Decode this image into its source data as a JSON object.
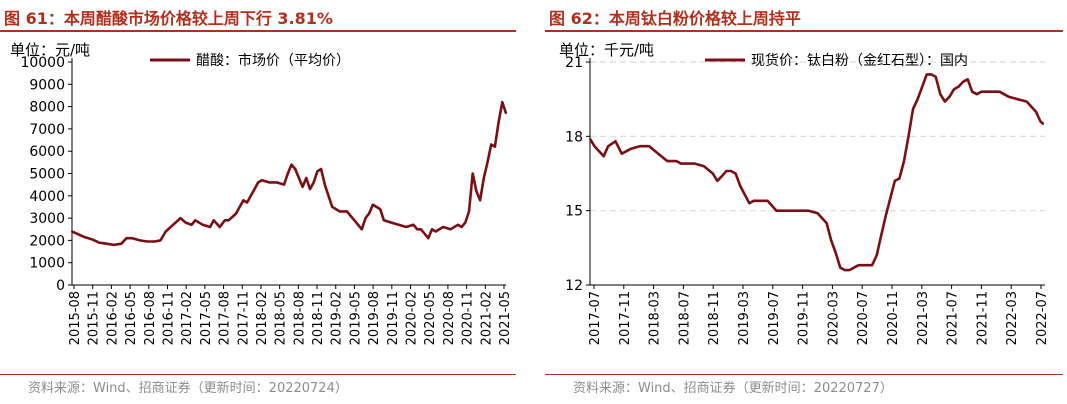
{
  "charts": [
    {
      "title": "图 61：本周醋酸市场价格较上周下行 3.81%",
      "unit": "单位：元/吨",
      "source": "资料来源：Wind、招商证券（更新时间：20220724）"
    },
    {
      "title": "图 62：本周钛白粉价格较上周持平",
      "unit": "单位：千元/吨",
      "source": "资料来源：Wind、招商证券（更新时间：20220727）"
    }
  ],
  "colors": {
    "line": "#7a0f14",
    "accent": "#b0301f",
    "grid": "#d9d9d9"
  },
  "chart_data": [
    {
      "type": "line",
      "ylim": [
        0,
        10000
      ],
      "yticks": [
        "0",
        "1000",
        "2000",
        "3000",
        "4000",
        "5000",
        "6000",
        "7000",
        "8000",
        "9000",
        "10000"
      ],
      "xlabels": [
        "2015-08",
        "2015-11",
        "2016-02",
        "2016-05",
        "2016-08",
        "2016-11",
        "2017-02",
        "2017-05",
        "2017-08",
        "2017-11",
        "2018-02",
        "2018-05",
        "2018-08",
        "2018-11",
        "2019-02",
        "2019-05",
        "2019-08",
        "2019-11",
        "2020-02",
        "2020-05",
        "2020-08",
        "2020-11",
        "2021-02",
        "2021-05"
      ],
      "xlim": [
        2015.583,
        2021.45
      ],
      "grid": false,
      "legend_position": "top",
      "series": [
        {
          "name": "醋酸：市场价（平均价）",
          "x": [
            2015.58,
            2015.65,
            2015.75,
            2015.85,
            2015.95,
            2016.05,
            2016.15,
            2016.25,
            2016.32,
            2016.4,
            2016.5,
            2016.6,
            2016.7,
            2016.78,
            2016.85,
            2016.95,
            2017.05,
            2017.12,
            2017.2,
            2017.25,
            2017.35,
            2017.45,
            2017.5,
            2017.58,
            2017.65,
            2017.7,
            2017.8,
            2017.85,
            2017.9,
            2017.95,
            2018.0,
            2018.05,
            2018.1,
            2018.15,
            2018.25,
            2018.35,
            2018.45,
            2018.5,
            2018.55,
            2018.6,
            2018.65,
            2018.7,
            2018.75,
            2018.8,
            2018.85,
            2018.9,
            2018.95,
            2019.0,
            2019.05,
            2019.1,
            2019.2,
            2019.3,
            2019.35,
            2019.4,
            2019.45,
            2019.5,
            2019.55,
            2019.6,
            2019.65,
            2019.7,
            2019.75,
            2019.8,
            2019.9,
            2020.0,
            2020.1,
            2020.2,
            2020.25,
            2020.3,
            2020.35,
            2020.4,
            2020.45,
            2020.5,
            2020.6,
            2020.7,
            2020.8,
            2020.85,
            2020.9,
            2020.95,
            2021.0,
            2021.05,
            2021.1,
            2021.15,
            2021.2,
            2021.25,
            2021.3,
            2021.35,
            2021.4,
            2021.43,
            2021.45
          ],
          "y": [
            2400,
            2300,
            2150,
            2050,
            1900,
            1850,
            1800,
            1850,
            2100,
            2100,
            2000,
            1950,
            1950,
            2000,
            2400,
            2700,
            3000,
            2800,
            2700,
            2900,
            2700,
            2600,
            2900,
            2600,
            2900,
            2900,
            3200,
            3500,
            3800,
            3700,
            4000,
            4300,
            4600,
            4700,
            4600,
            4600,
            4500,
            5000,
            5400,
            5200,
            4800,
            4400,
            4800,
            4300,
            4600,
            5100,
            5200,
            4500,
            4000,
            3500,
            3300,
            3300,
            3100,
            2900,
            2700,
            2500,
            3000,
            3200,
            3600,
            3500,
            3400,
            2900,
            2800,
            2700,
            2600,
            2700,
            2500,
            2500,
            2300,
            2100,
            2500,
            2400,
            2600,
            2500,
            2700,
            2600,
            2800,
            3300,
            5000,
            4200,
            3800,
            4800,
            5500,
            6300,
            6200,
            7300,
            8200,
            7900,
            7700
          ]
        }
      ]
    },
    {
      "type": "line",
      "ylim": [
        12,
        21
      ],
      "yticks": [
        "12",
        "15",
        "18",
        "21"
      ],
      "xlabels": [
        "2017-07",
        "2017-11",
        "2018-03",
        "2018-07",
        "2018-11",
        "2019-03",
        "2019-07",
        "2019-11",
        "2020-03",
        "2020-07",
        "2020-11",
        "2021-03",
        "2021-07",
        "2021-11",
        "2022-03",
        "2022-07"
      ],
      "xlim": [
        2017.5,
        2022.5
      ],
      "grid": true,
      "legend_position": "top",
      "series": [
        {
          "name": "现货价：钛白粉（金红石型）：国内",
          "x": [
            2017.5,
            2017.55,
            2017.6,
            2017.65,
            2017.7,
            2017.78,
            2017.85,
            2017.95,
            2018.05,
            2018.15,
            2018.25,
            2018.35,
            2018.45,
            2018.5,
            2018.55,
            2018.65,
            2018.75,
            2018.85,
            2018.9,
            2018.95,
            2019.0,
            2019.05,
            2019.1,
            2019.15,
            2019.25,
            2019.3,
            2019.35,
            2019.45,
            2019.55,
            2019.6,
            2019.7,
            2019.8,
            2019.9,
            2020.0,
            2020.1,
            2020.15,
            2020.2,
            2020.25,
            2020.3,
            2020.35,
            2020.4,
            2020.45,
            2020.5,
            2020.6,
            2020.65,
            2020.7,
            2020.75,
            2020.8,
            2020.85,
            2020.9,
            2020.95,
            2021.0,
            2021.05,
            2021.1,
            2021.15,
            2021.2,
            2021.25,
            2021.3,
            2021.35,
            2021.4,
            2021.45,
            2021.5,
            2021.55,
            2021.6,
            2021.65,
            2021.7,
            2021.75,
            2021.8,
            2021.85,
            2021.9,
            2021.95,
            2022.0,
            2022.1,
            2022.2,
            2022.3,
            2022.35,
            2022.4,
            2022.45,
            2022.48
          ],
          "y": [
            17.9,
            17.6,
            17.4,
            17.2,
            17.6,
            17.8,
            17.3,
            17.5,
            17.6,
            17.6,
            17.3,
            17.0,
            17.0,
            16.9,
            16.9,
            16.9,
            16.8,
            16.5,
            16.2,
            16.4,
            16.6,
            16.6,
            16.5,
            16.0,
            15.3,
            15.4,
            15.4,
            15.4,
            15.0,
            15.0,
            15.0,
            15.0,
            15.0,
            14.9,
            14.5,
            13.8,
            13.3,
            12.7,
            12.6,
            12.6,
            12.7,
            12.8,
            12.8,
            12.8,
            13.2,
            14.0,
            14.8,
            15.5,
            16.2,
            16.3,
            17.0,
            18.0,
            19.1,
            19.5,
            20.0,
            20.5,
            20.5,
            20.4,
            19.7,
            19.4,
            19.6,
            19.9,
            20.0,
            20.2,
            20.3,
            19.8,
            19.7,
            19.8,
            19.8,
            19.8,
            19.8,
            19.8,
            19.6,
            19.5,
            19.4,
            19.2,
            19.0,
            18.6,
            18.5
          ]
        }
      ]
    }
  ]
}
